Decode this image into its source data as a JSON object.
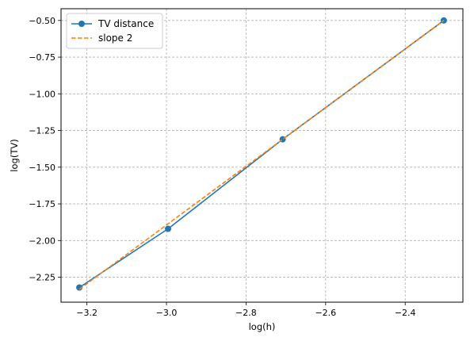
{
  "chart_data": {
    "type": "line",
    "title": "",
    "xlabel": "log(h)",
    "ylabel": "log(TV)",
    "xlim": [
      -3.265,
      -2.255
    ],
    "ylim": [
      -2.42,
      -0.42
    ],
    "xticks": [
      -3.2,
      -3.0,
      -2.8,
      -2.6,
      -2.4
    ],
    "xtick_labels": [
      "−3.2",
      "−3.0",
      "−2.8",
      "−2.6",
      "−2.4"
    ],
    "yticks": [
      -2.25,
      -2.0,
      -1.75,
      -1.5,
      -1.25,
      -1.0,
      -0.75,
      -0.5
    ],
    "ytick_labels": [
      "−2.25",
      "−2.00",
      "−1.75",
      "−1.50",
      "−1.25",
      "−1.00",
      "−0.75",
      "−0.50"
    ],
    "grid": true,
    "legend_position": "top-left",
    "series": [
      {
        "name": "TV distance",
        "color": "#1f77b4",
        "style": "solid",
        "marker": "circle",
        "x": [
          -3.219,
          -2.996,
          -2.708,
          -2.303
        ],
        "y": [
          -2.32,
          -1.92,
          -1.31,
          -0.5
        ]
      },
      {
        "name": "slope 2",
        "color": "#ff7f0e",
        "style": "dashed",
        "marker": "none",
        "x": [
          -3.219,
          -2.996,
          -2.708,
          -2.303
        ],
        "y": [
          -2.332,
          -1.886,
          -1.31,
          -0.5
        ]
      }
    ]
  }
}
